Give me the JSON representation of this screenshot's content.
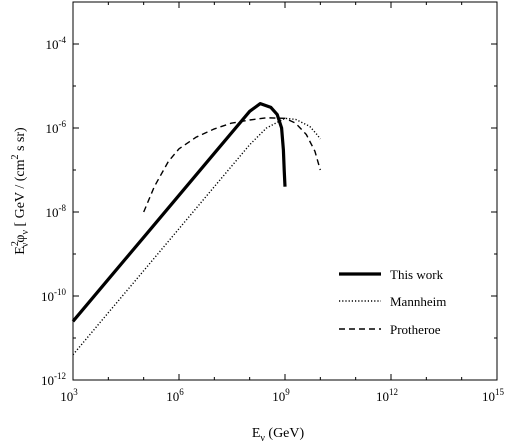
{
  "chart_data": {
    "type": "line",
    "xscale": "log",
    "yscale": "log",
    "xlim": [
      1000,
      1000000000000000.0
    ],
    "ylim": [
      1e-12,
      0.001
    ],
    "xlabel": {
      "main": "E",
      "sub": "ν",
      "rest": " (GeV)"
    },
    "ylabel": {
      "main": "E",
      "sup": "2",
      "sub": "ν",
      "mid": "φ",
      "sub2": "ν",
      "rest": "  [ GeV / (cm",
      "sup2": "2",
      "rest2": " s sr)"
    },
    "xticks": [
      {
        "base": "10",
        "exp": "3",
        "value": 1000
      },
      {
        "base": "10",
        "exp": "6",
        "value": 1000000
      },
      {
        "base": "10",
        "exp": "9",
        "value": 1000000000
      },
      {
        "base": "10",
        "exp": "12",
        "value": 1000000000000
      },
      {
        "base": "10",
        "exp": "15",
        "value": 1000000000000000
      }
    ],
    "yticks": [
      {
        "base": "10",
        "exp": "-4",
        "value": 0.0001
      },
      {
        "base": "10",
        "exp": "-6",
        "value": 1e-06
      },
      {
        "base": "10",
        "exp": "-8",
        "value": 1e-08
      },
      {
        "base": "10",
        "exp": "-10",
        "value": 1e-10
      },
      {
        "base": "10",
        "exp": "-12",
        "value": 1e-12
      }
    ],
    "grid": false,
    "legend_position": "bottom-right",
    "series": [
      {
        "name": "This work",
        "style": "solid",
        "x": [
          1000,
          10000,
          100000,
          1000000,
          10000000,
          100000000,
          200000000,
          400000000,
          600000000,
          800000000,
          900000000,
          950000000,
          1000000000
        ],
        "y": [
          2.5e-11,
          2.5e-10,
          2.5e-09,
          2.5e-08,
          2.5e-07,
          2.5e-06,
          3.8e-06,
          3.1e-06,
          2.1e-06,
          1e-06,
          3e-07,
          1e-07,
          4e-08
        ]
      },
      {
        "name": "Mannheim",
        "style": "dotted",
        "x": [
          1000,
          10000,
          100000,
          1000000,
          10000000,
          100000000,
          300000000,
          1000000000,
          2000000000,
          5000000000,
          8000000000,
          10000000000
        ],
        "y": [
          4e-12,
          4e-11,
          4e-10,
          4e-09,
          4e-08,
          4e-07,
          1e-06,
          1.7e-06,
          1.6e-06,
          1.1e-06,
          7e-07,
          5.5e-07
        ]
      },
      {
        "name": "Protheroe",
        "style": "dashed",
        "x": [
          100000,
          200000,
          500000,
          1000000,
          3000000,
          10000000,
          30000000,
          100000000,
          300000000,
          1000000000,
          2000000000,
          4000000000,
          7000000000,
          10000000000
        ],
        "y": [
          1e-08,
          4e-08,
          1.6e-07,
          3.2e-07,
          6e-07,
          9.5e-07,
          1.3e-06,
          1.55e-06,
          1.75e-06,
          1.7e-06,
          1.3e-06,
          7e-07,
          2.8e-07,
          1e-07
        ]
      }
    ]
  }
}
